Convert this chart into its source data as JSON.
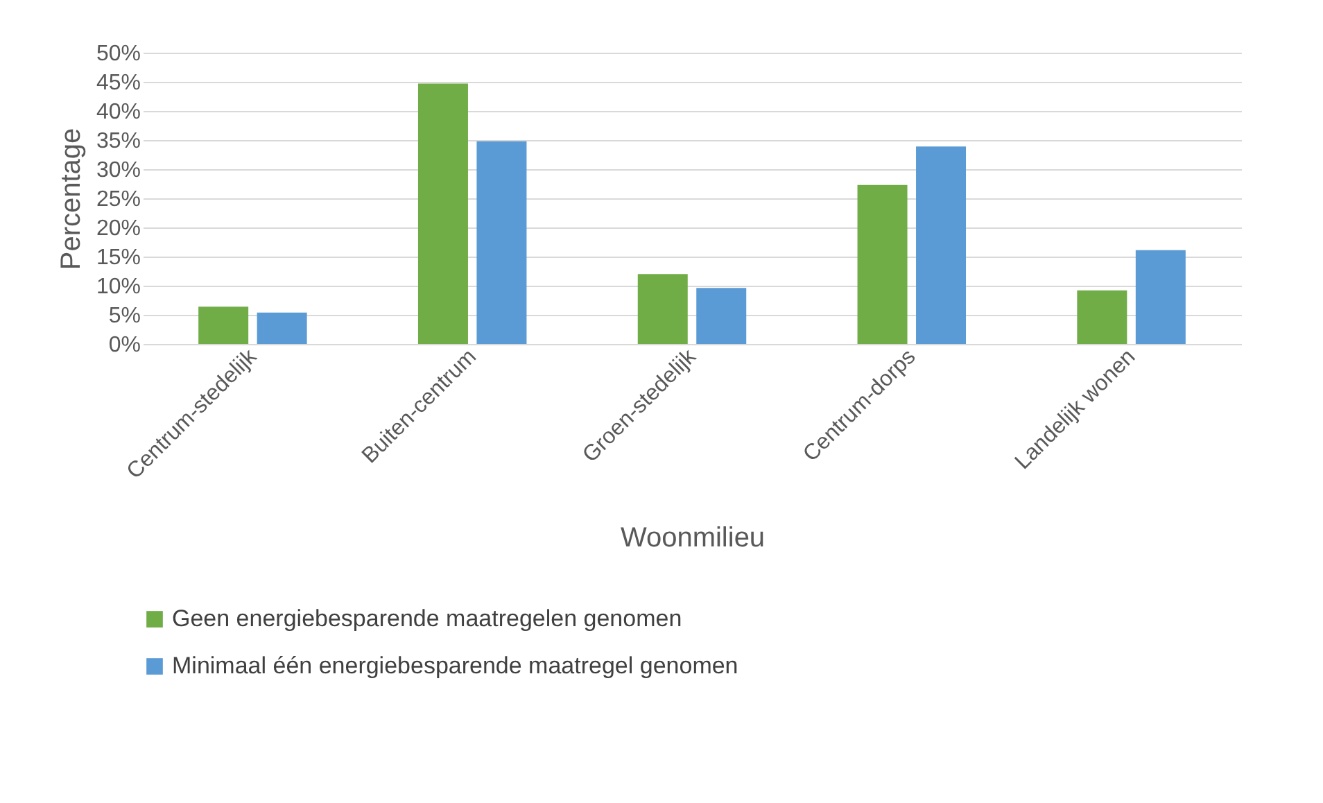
{
  "chart_data": {
    "type": "bar",
    "xlabel": "Woonmilieu",
    "ylabel": "Percentage",
    "categories": [
      "Centrum-stedelijk",
      "Buiten-centrum",
      "Groen-stedelijk",
      "Centrum-dorps",
      "Landelijk wonen"
    ],
    "series": [
      {
        "name": "Geen energiebesparende maatregelen genomen",
        "color": "#70ad47",
        "values": [
          6.4,
          44.7,
          12.0,
          27.3,
          9.2
        ]
      },
      {
        "name": "Minimaal één energiebesparende maatregel genomen",
        "color": "#5b9bd5",
        "values": [
          5.4,
          34.8,
          9.6,
          33.9,
          16.1
        ]
      }
    ],
    "ylim": [
      0,
      50
    ],
    "yticks": [
      {
        "value": 0,
        "label": "0%"
      },
      {
        "value": 5,
        "label": "5%"
      },
      {
        "value": 10,
        "label": "10%"
      },
      {
        "value": 15,
        "label": "15%"
      },
      {
        "value": 20,
        "label": "20%"
      },
      {
        "value": 25,
        "label": "25%"
      },
      {
        "value": 30,
        "label": "30%"
      },
      {
        "value": 35,
        "label": "35%"
      },
      {
        "value": 40,
        "label": "40%"
      },
      {
        "value": 45,
        "label": "45%"
      },
      {
        "value": 50,
        "label": "50%"
      }
    ],
    "grid": "y",
    "legend": "bottom"
  }
}
